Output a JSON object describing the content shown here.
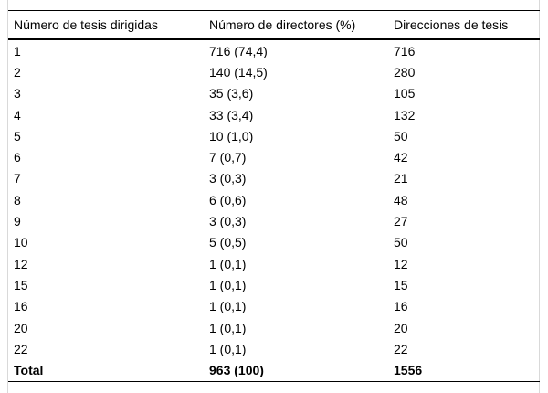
{
  "figure": {
    "background": "#ffffff",
    "rule_color": "#000000",
    "edge_color": "#d9d9d9",
    "text_color": "#000000"
  },
  "table": {
    "columns": [
      "Número de tesis dirigidas",
      "Número de directores (%)",
      "Direcciones de tesis"
    ],
    "rows": [
      [
        "1",
        "716 (74,4)",
        "716"
      ],
      [
        "2",
        "140 (14,5)",
        "280"
      ],
      [
        "3",
        "35 (3,6)",
        "105"
      ],
      [
        "4",
        "33 (3,4)",
        "132"
      ],
      [
        "5",
        "10 (1,0)",
        "50"
      ],
      [
        "6",
        "7 (0,7)",
        "42"
      ],
      [
        "7",
        "3 (0,3)",
        "21"
      ],
      [
        "8",
        "6 (0,6)",
        "48"
      ],
      [
        "9",
        "3 (0,3)",
        "27"
      ],
      [
        "10",
        "5 (0,5)",
        "50"
      ],
      [
        "12",
        "1 (0,1)",
        "12"
      ],
      [
        "15",
        "1 (0,1)",
        "15"
      ],
      [
        "16",
        "1 (0,1)",
        "16"
      ],
      [
        "20",
        "1 (0,1)",
        "20"
      ],
      [
        "22",
        "1 (0,1)",
        "22"
      ]
    ],
    "total_row": [
      "Total",
      "963 (100)",
      "1556"
    ]
  }
}
